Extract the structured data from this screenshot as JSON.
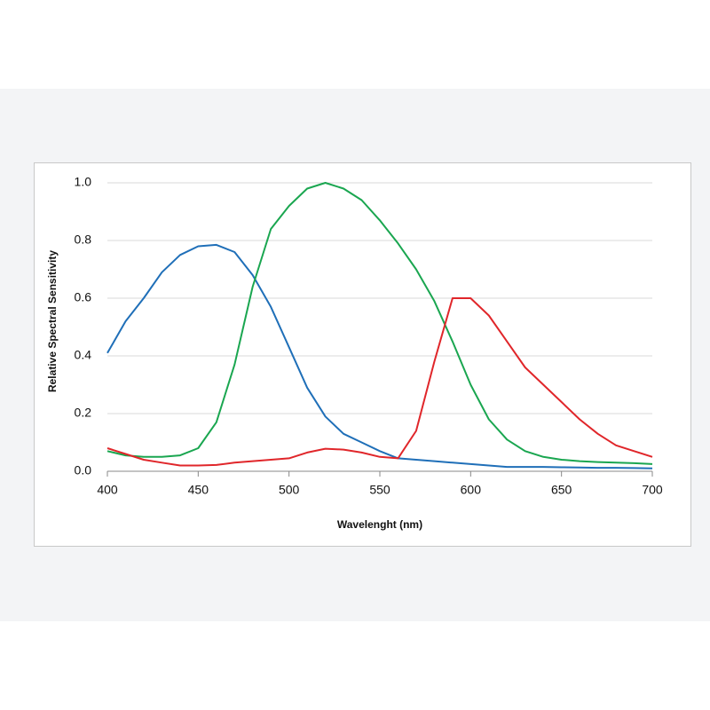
{
  "chart_data": {
    "type": "line",
    "x_label": "Wavelenght (nm)",
    "y_label": "Relative Spectral Sensitivity",
    "x": [
      400,
      410,
      420,
      430,
      440,
      450,
      460,
      470,
      480,
      490,
      500,
      510,
      520,
      530,
      540,
      550,
      560,
      570,
      580,
      590,
      600,
      610,
      620,
      630,
      640,
      650,
      660,
      670,
      680,
      690,
      700
    ],
    "series": [
      {
        "color": "#1f6fb8",
        "values": [
          0.41,
          0.52,
          0.6,
          0.69,
          0.75,
          0.78,
          0.785,
          0.76,
          0.68,
          0.57,
          0.43,
          0.29,
          0.19,
          0.13,
          0.1,
          0.07,
          0.045,
          0.04,
          0.035,
          0.03,
          0.025,
          0.02,
          0.015,
          0.015,
          0.015,
          0.014,
          0.013,
          0.012,
          0.012,
          0.011,
          0.01
        ]
      },
      {
        "color": "#1aa650",
        "values": [
          0.07,
          0.055,
          0.05,
          0.05,
          0.055,
          0.08,
          0.17,
          0.37,
          0.64,
          0.84,
          0.92,
          0.98,
          1.0,
          0.98,
          0.94,
          0.87,
          0.79,
          0.7,
          0.59,
          0.45,
          0.3,
          0.18,
          0.11,
          0.07,
          0.05,
          0.04,
          0.035,
          0.032,
          0.03,
          0.028,
          0.025
        ]
      },
      {
        "color": "#e0262a",
        "values": [
          0.08,
          0.06,
          0.04,
          0.03,
          0.02,
          0.02,
          0.022,
          0.03,
          0.035,
          0.04,
          0.045,
          0.065,
          0.078,
          0.075,
          0.065,
          0.05,
          0.045,
          0.14,
          0.38,
          0.6,
          0.6,
          0.54,
          0.45,
          0.36,
          0.3,
          0.24,
          0.18,
          0.13,
          0.09,
          0.07,
          0.05
        ]
      }
    ],
    "xlim": [
      400,
      700
    ],
    "xticks": [
      400,
      450,
      500,
      550,
      600,
      650,
      700
    ],
    "ylim": [
      0,
      1
    ],
    "yticks": [
      {
        "value": 0,
        "label": "0.0"
      },
      {
        "value": 0.2,
        "label": "0.2"
      },
      {
        "value": 0.4,
        "label": "0.4"
      },
      {
        "value": 0.6,
        "label": "0.6"
      },
      {
        "value": 0.8,
        "label": "0.8"
      },
      {
        "value": 1,
        "label": "1.0"
      }
    ],
    "grid": true
  }
}
